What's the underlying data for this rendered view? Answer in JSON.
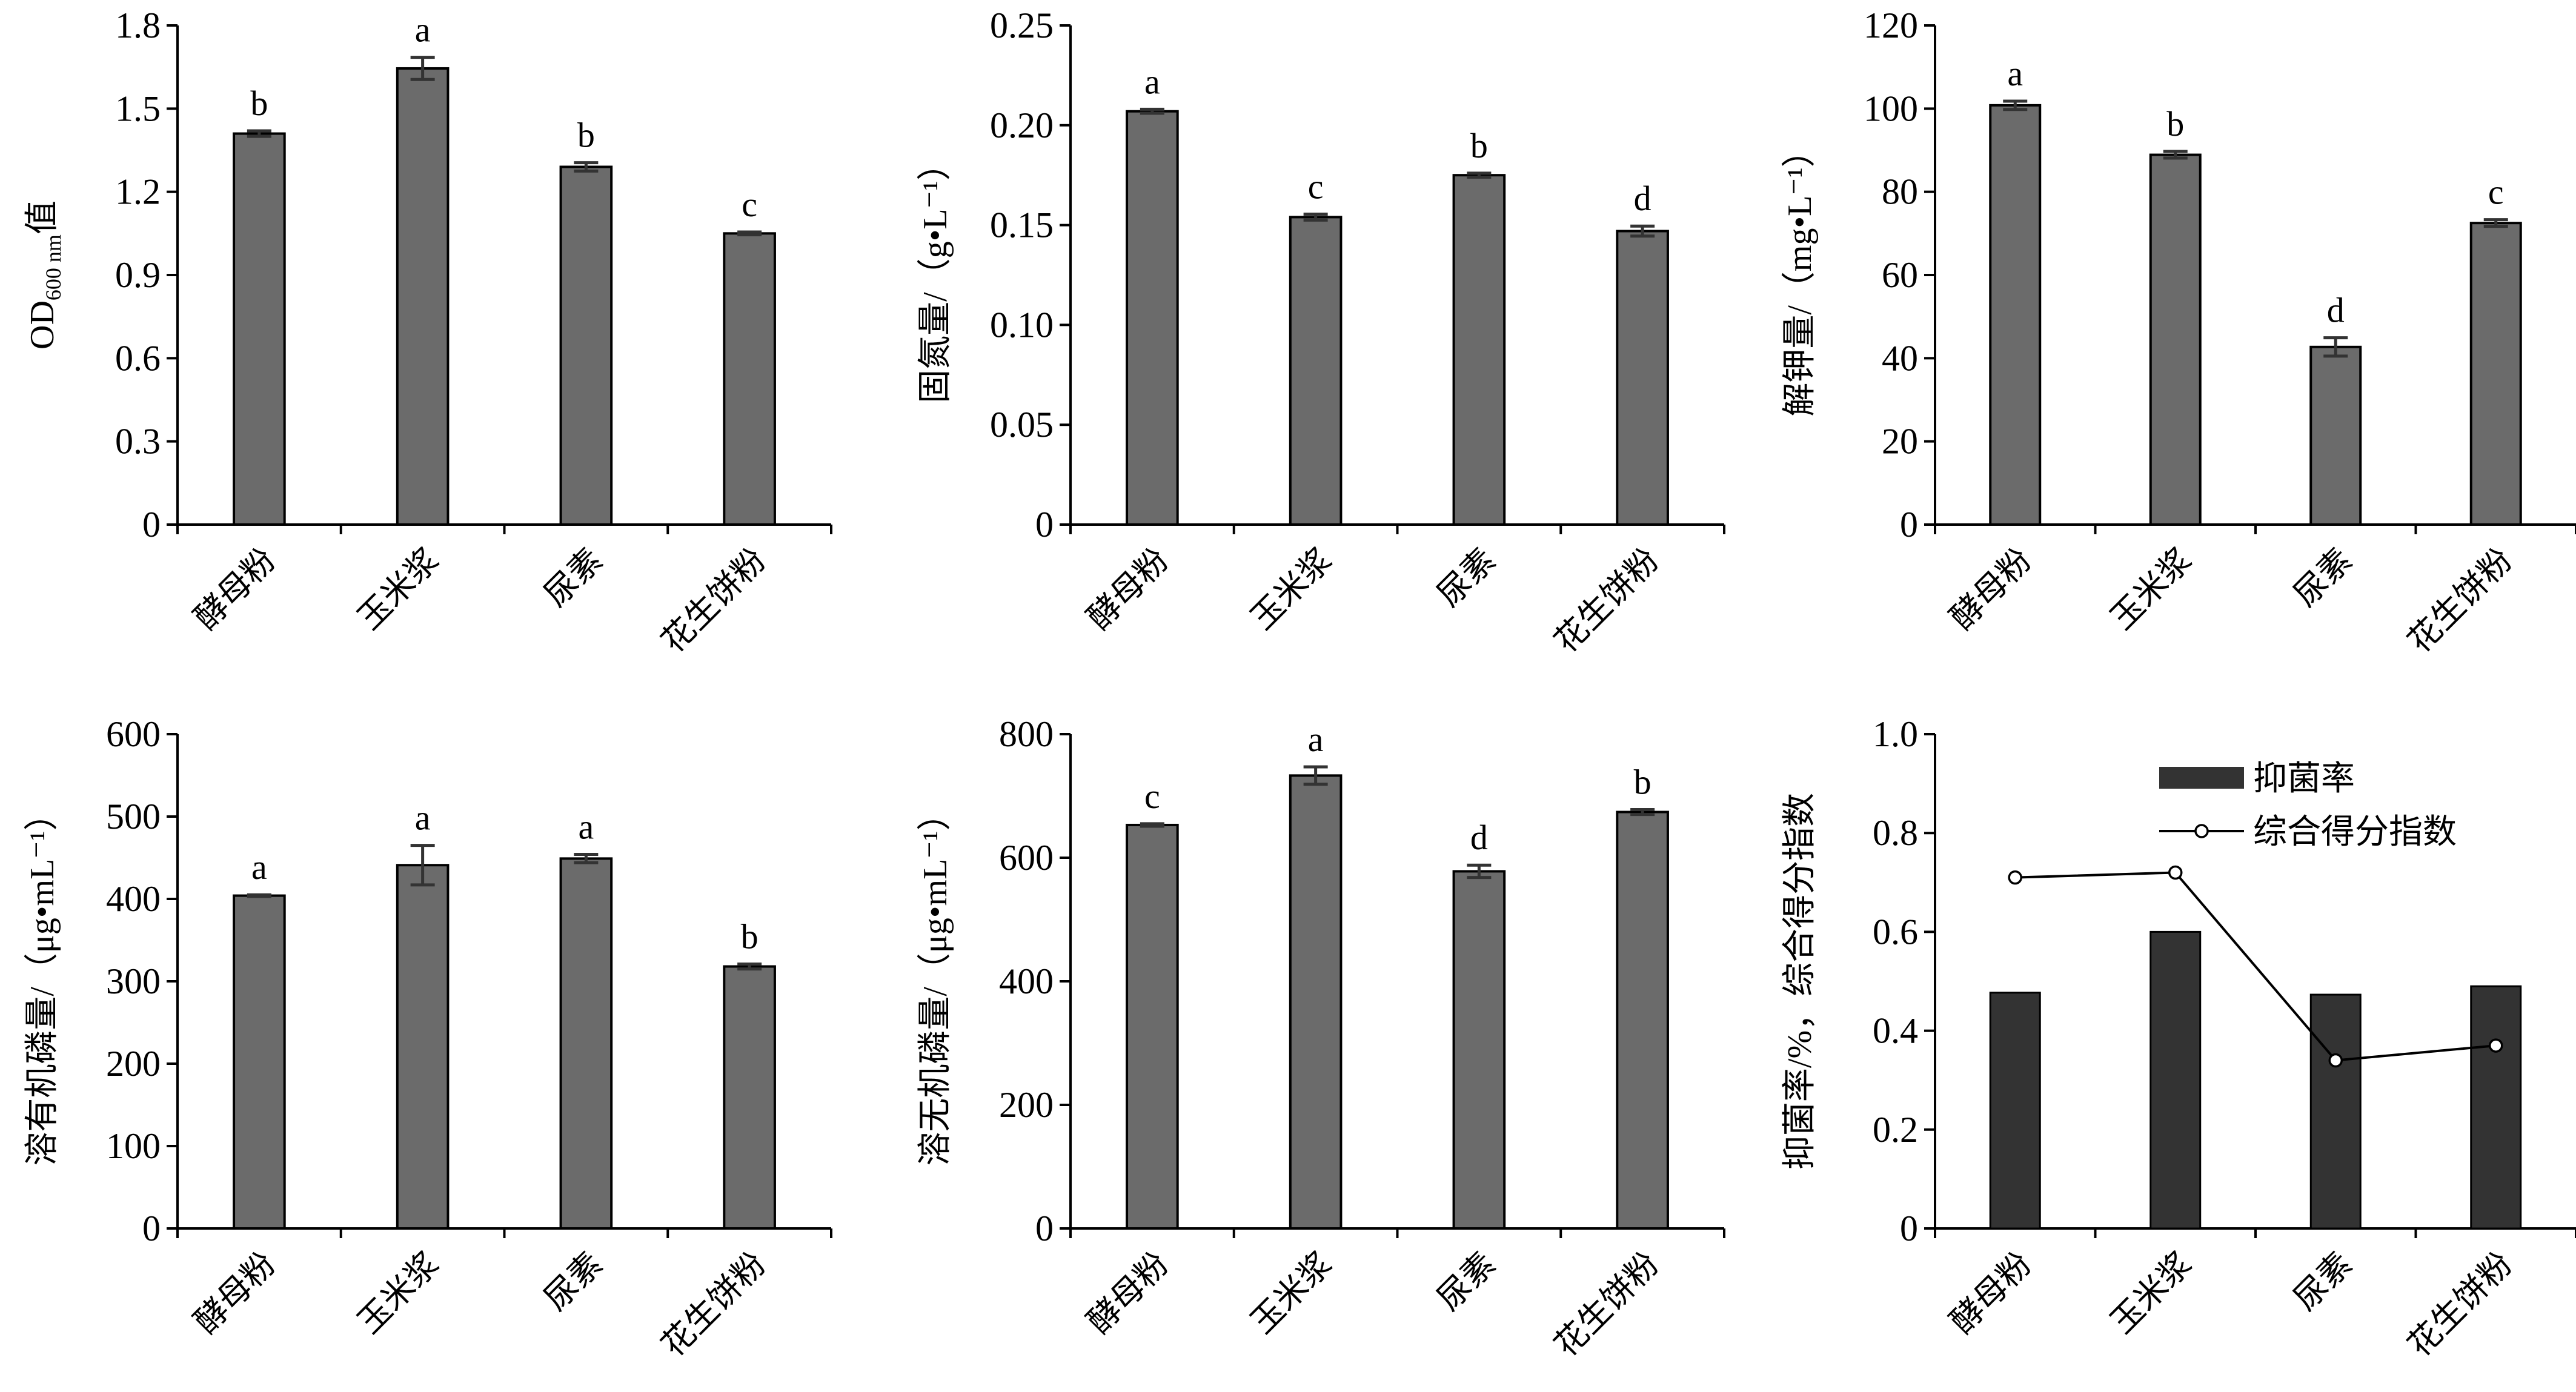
{
  "figure": {
    "categories": [
      "酵母粉",
      "玉米浆",
      "尿素",
      "花生饼粉"
    ]
  },
  "chart_data": [
    {
      "type": "bar",
      "id": "od600",
      "title": "",
      "ylabel_main": "OD",
      "ylabel_sub": "600 nm",
      "ylabel_tail": "值",
      "xlabel": "",
      "categories": [
        "酵母粉",
        "玉米浆",
        "尿素",
        "花生饼粉"
      ],
      "ylim": [
        0,
        1.8
      ],
      "yticks": [
        0,
        0.3,
        0.6,
        0.9,
        1.2,
        1.5,
        1.8
      ],
      "ytick_labels": [
        "0",
        "0.3",
        "0.6",
        "0.9",
        "1.2",
        "1.5",
        "1.8"
      ],
      "values": [
        1.41,
        1.645,
        1.29,
        1.05
      ],
      "errors": [
        0.01,
        0.04,
        0.015,
        0.005
      ],
      "significance": [
        "b",
        "a",
        "b",
        "c"
      ],
      "bar_color": "#6b6b6b",
      "grid": false
    },
    {
      "type": "bar",
      "id": "nitrogen-fixation",
      "title": "",
      "ylabel": "固氮量/（g•L⁻¹）",
      "xlabel": "",
      "categories": [
        "酵母粉",
        "玉米浆",
        "尿素",
        "花生饼粉"
      ],
      "ylim": [
        0,
        0.25
      ],
      "yticks": [
        0,
        0.05,
        0.1,
        0.15,
        0.2,
        0.25
      ],
      "ytick_labels": [
        "0",
        "0.05",
        "0.10",
        "0.15",
        "0.20",
        "0.25"
      ],
      "values": [
        0.207,
        0.154,
        0.175,
        0.147
      ],
      "errors": [
        0.001,
        0.0015,
        0.001,
        0.0025
      ],
      "significance": [
        "a",
        "c",
        "b",
        "d"
      ],
      "bar_color": "#6b6b6b",
      "grid": false
    },
    {
      "type": "bar",
      "id": "potassium-release",
      "title": "",
      "ylabel": "解钾量/（mg•L⁻¹）",
      "xlabel": "",
      "categories": [
        "酵母粉",
        "玉米浆",
        "尿素",
        "花生饼粉"
      ],
      "ylim": [
        0,
        120
      ],
      "yticks": [
        0,
        20,
        40,
        60,
        80,
        100,
        120
      ],
      "ytick_labels": [
        "0",
        "20",
        "40",
        "60",
        "80",
        "100",
        "120"
      ],
      "values": [
        100.8,
        88.9,
        42.7,
        72.5
      ],
      "errors": [
        1.0,
        0.8,
        2.2,
        0.8
      ],
      "significance": [
        "a",
        "b",
        "d",
        "c"
      ],
      "bar_color": "#6b6b6b",
      "grid": false
    },
    {
      "type": "bar",
      "id": "organic-phosphorus",
      "title": "",
      "ylabel": "溶有机磷量/（μg•mL⁻¹）",
      "xlabel": "",
      "categories": [
        "酵母粉",
        "玉米浆",
        "尿素",
        "花生饼粉"
      ],
      "ylim": [
        0,
        600
      ],
      "yticks": [
        0,
        100,
        200,
        300,
        400,
        500,
        600
      ],
      "ytick_labels": [
        "0",
        "100",
        "200",
        "300",
        "400",
        "500",
        "600"
      ],
      "values": [
        404,
        441,
        449,
        318
      ],
      "errors": [
        1,
        24,
        5,
        3
      ],
      "significance": [
        "a",
        "a",
        "a",
        "b"
      ],
      "bar_color": "#6b6b6b",
      "grid": false
    },
    {
      "type": "bar",
      "id": "inorganic-phosphorus",
      "title": "",
      "ylabel": "溶无机磷量/（μg•mL⁻¹）",
      "xlabel": "",
      "categories": [
        "酵母粉",
        "玉米浆",
        "尿素",
        "花生饼粉"
      ],
      "ylim": [
        0,
        800
      ],
      "yticks": [
        0,
        200,
        400,
        600,
        800
      ],
      "ytick_labels": [
        "0",
        "200",
        "400",
        "600",
        "800"
      ],
      "values": [
        653,
        733,
        578,
        674
      ],
      "errors": [
        2,
        14,
        10,
        4
      ],
      "significance": [
        "c",
        "a",
        "d",
        "b"
      ],
      "bar_color": "#6b6b6b",
      "grid": false
    },
    {
      "type": "bar+line",
      "id": "inhibition-score",
      "title": "",
      "ylabel": "抑菌率/%，综合得分指数",
      "xlabel": "",
      "categories": [
        "酵母粉",
        "玉米浆",
        "尿素",
        "花生饼粉"
      ],
      "ylim": [
        0,
        1.0
      ],
      "yticks": [
        0,
        0.2,
        0.4,
        0.6,
        0.8,
        1.0
      ],
      "ytick_labels": [
        "0",
        "0.2",
        "0.4",
        "0.6",
        "0.8",
        "1.0"
      ],
      "series": [
        {
          "name": "抑菌率",
          "type": "bar",
          "values": [
            0.477,
            0.6,
            0.473,
            0.49
          ],
          "color": "#333333"
        },
        {
          "name": "综合得分指数",
          "type": "line",
          "marker": "open-circle",
          "values": [
            0.71,
            0.72,
            0.34,
            0.37
          ],
          "color": "#000000"
        }
      ],
      "legend_position": "top-right",
      "grid": false
    }
  ]
}
